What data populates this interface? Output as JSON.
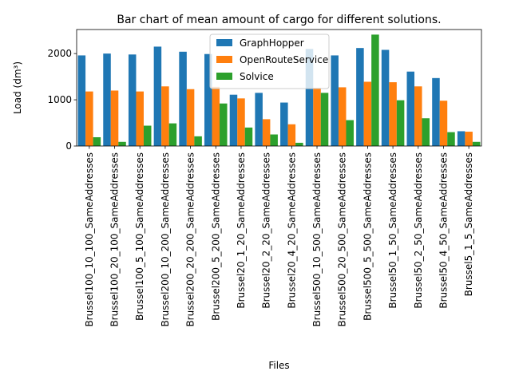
{
  "chart_data": {
    "type": "bar",
    "title": "Bar chart of mean amount of cargo for different solutions.",
    "xlabel": "Files",
    "ylabel": "Load (dm³)",
    "ylim": [
      0,
      2520
    ],
    "yticks": [
      0,
      1000,
      2000
    ],
    "legend_position": "top-center",
    "grid": false,
    "categories": [
      "Brussel100_10_100_SameAddresses",
      "Brussel100_20_100_SameAddresses",
      "Brussel100_5_100_SameAddresses",
      "Brussel200_10_200_SameAddresses",
      "Brussel200_20_200_SameAddresses",
      "Brussel200_5_200_SameAddresses",
      "Brussel20_1_20_SameAddresses",
      "Brussel20_2_20_SameAddresses",
      "Brussel20_4_20_SameAddresses",
      "Brussel500_10_500_SameAddresses",
      "Brussel500_20_500_SameAddresses",
      "Brussel500_5_500_SameAddresses",
      "Brussel50_1_50_SameAddresses",
      "Brussel50_2_50_SameAddresses",
      "Brussel50_4_50_SameAddresses",
      "Brussel5_1_5_SameAddresses"
    ],
    "series": [
      {
        "name": "GraphHopper",
        "color": "#1f77b4",
        "values": [
          1960,
          2000,
          1980,
          2150,
          2040,
          1990,
          1110,
          1150,
          940,
          2100,
          1960,
          2120,
          2080,
          1610,
          1470,
          320
        ]
      },
      {
        "name": "OpenRouteService",
        "color": "#ff7f0e",
        "values": [
          1180,
          1200,
          1180,
          1290,
          1230,
          1280,
          1030,
          580,
          470,
          1260,
          1270,
          1390,
          1380,
          1290,
          980,
          310
        ]
      },
      {
        "name": "Solvice",
        "color": "#2ca02c",
        "values": [
          190,
          90,
          440,
          490,
          210,
          920,
          400,
          250,
          70,
          1150,
          560,
          2410,
          990,
          600,
          300,
          90
        ]
      }
    ]
  }
}
